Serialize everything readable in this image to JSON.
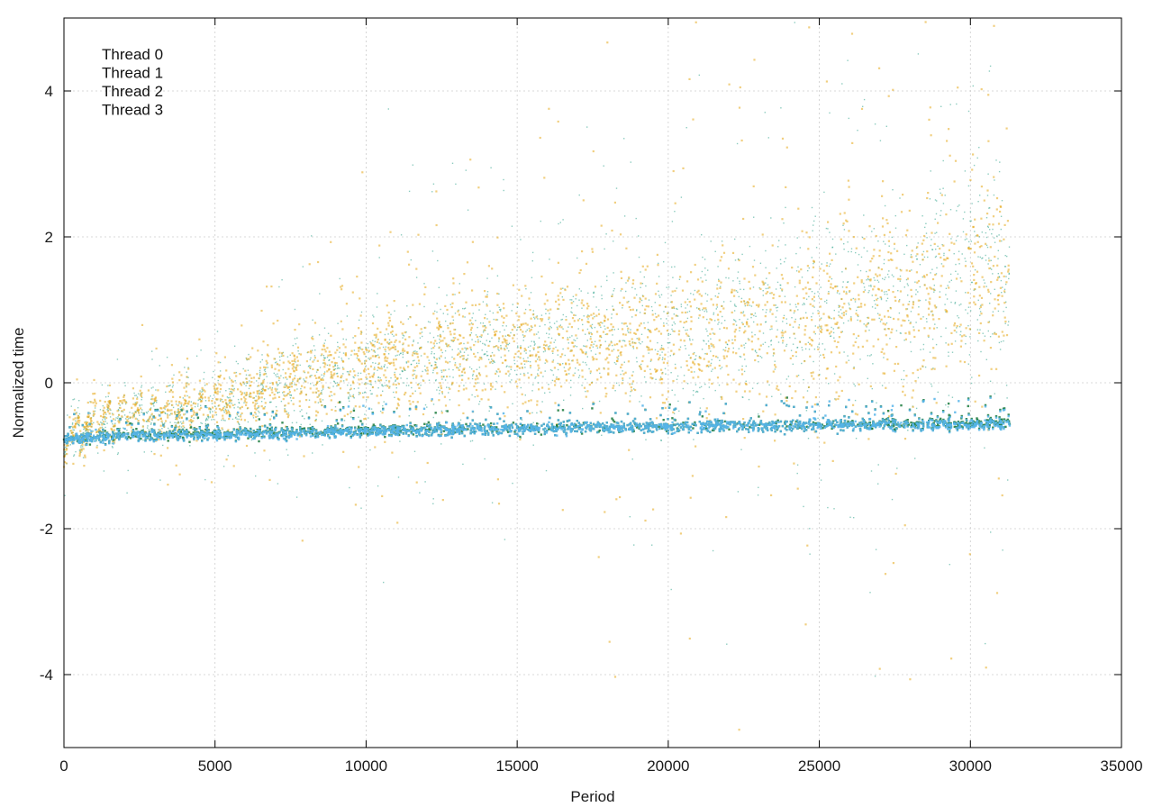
{
  "chart_data": {
    "type": "scatter",
    "title": "",
    "xlabel": "Period",
    "ylabel": "Normalized time",
    "xlim": [
      0,
      35000
    ],
    "ylim": [
      -5,
      5
    ],
    "xticks": [
      0,
      5000,
      10000,
      15000,
      20000,
      25000,
      30000,
      35000
    ],
    "yticks": [
      -4,
      -2,
      0,
      2,
      4
    ],
    "grid": true,
    "legend_position": "top-left",
    "x_max_data": 31300,
    "series": [
      {
        "name": "Thread 0",
        "color": "#1a7a3c",
        "description_points": [
          [
            0,
            -0.78
          ],
          [
            2000,
            -0.72
          ],
          [
            5000,
            -0.7
          ],
          [
            10000,
            -0.66
          ],
          [
            15000,
            -0.63
          ],
          [
            20000,
            -0.6
          ],
          [
            25000,
            -0.58
          ],
          [
            31300,
            -0.55
          ]
        ]
      },
      {
        "name": "Thread 1",
        "color": "#56b4e9",
        "description_points": [
          [
            0,
            -0.78
          ],
          [
            2000,
            -0.73
          ],
          [
            5000,
            -0.71
          ],
          [
            10000,
            -0.67
          ],
          [
            15000,
            -0.63
          ],
          [
            20000,
            -0.6
          ],
          [
            25000,
            -0.58
          ],
          [
            31300,
            -0.57
          ]
        ]
      },
      {
        "name": "Thread 2",
        "color": "#1a9a80",
        "description_points": [
          [
            0,
            -0.75
          ],
          [
            2000,
            -0.45
          ],
          [
            5000,
            -0.3
          ],
          [
            7000,
            0.0
          ],
          [
            10000,
            0.2
          ],
          [
            15000,
            0.55
          ],
          [
            20000,
            0.7
          ],
          [
            25000,
            1.0
          ],
          [
            31300,
            1.5
          ]
        ]
      },
      {
        "name": "Thread 3",
        "color": "#e6a817",
        "description_points": [
          [
            0,
            -0.75
          ],
          [
            2000,
            -0.4
          ],
          [
            5000,
            -0.3
          ],
          [
            7000,
            0.0
          ],
          [
            10000,
            0.25
          ],
          [
            15000,
            0.5
          ],
          [
            20000,
            0.6
          ],
          [
            25000,
            0.9
          ],
          [
            31300,
            1.6
          ]
        ]
      }
    ]
  }
}
